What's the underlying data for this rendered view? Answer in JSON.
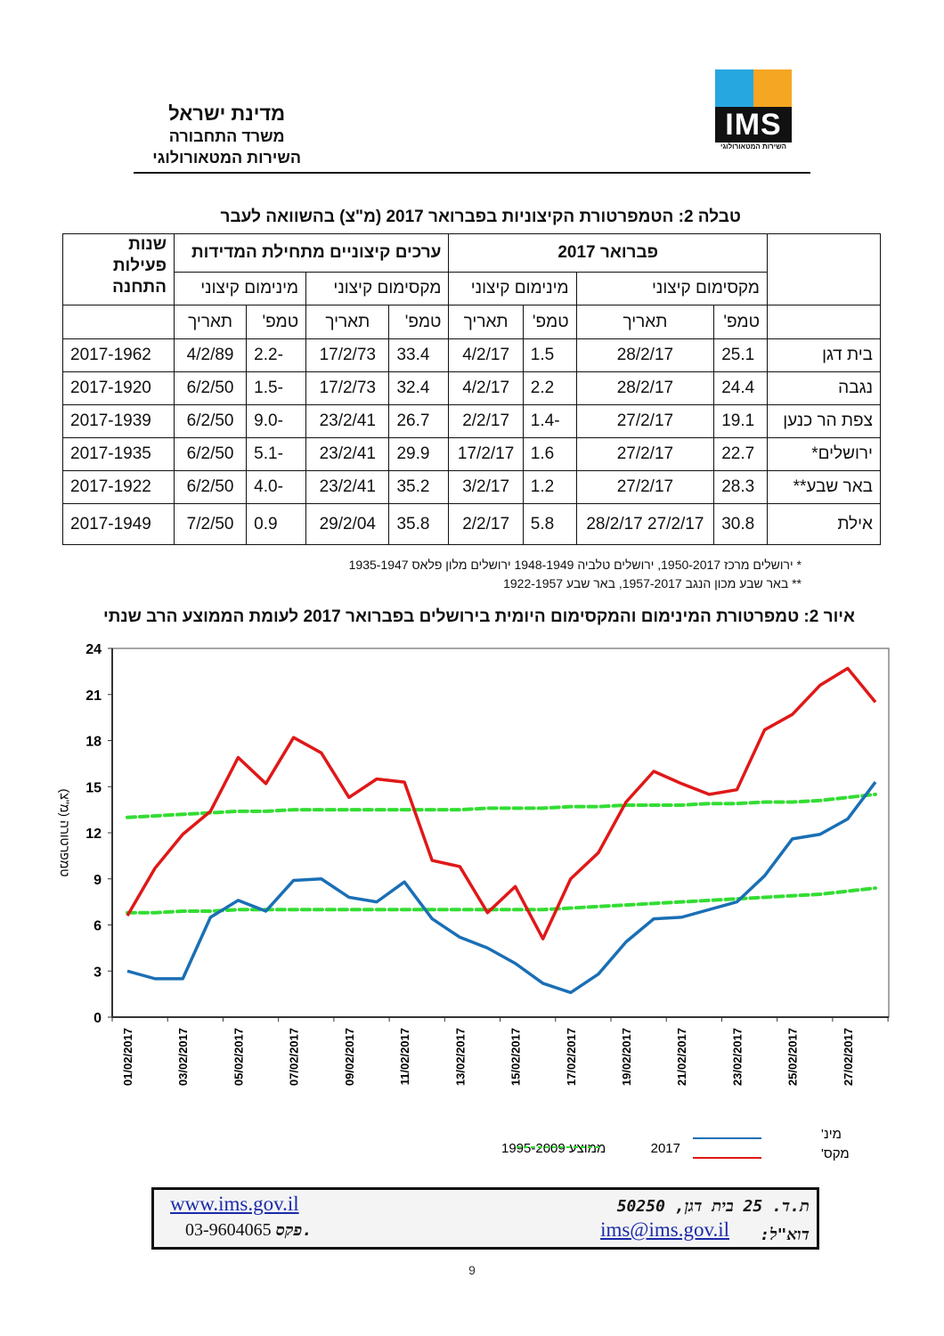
{
  "header": {
    "line1": "מדינת ישראל",
    "line2": "משרד התחבורה",
    "line3": "השירות המטאורולוגי",
    "logo_text": "IMS",
    "logo_subtext": "השירות המטאורולוגי"
  },
  "table": {
    "title": "טבלה 2: הטמפרטורת הקיצוניות בפברואר 2017 (מ\"צ) בהשוואה לעבר",
    "group_feb": "פברואר 2017",
    "group_hist": "ערכים קיצוניים מתחילת המדידות",
    "years_header": "שנות פעילות התחנה",
    "max_label": "מקסימום קיצוני",
    "min_label": "מינימום קיצוני",
    "temp_label": "טמפ'",
    "date_label": "תאריך",
    "rows": [
      {
        "station": "בית דגן",
        "feb_max": "25.1",
        "feb_max_date": "28/2/17",
        "feb_min": "1.5",
        "feb_min_date": "4/2/17",
        "hist_max": "33.4",
        "hist_max_date": "17/2/73",
        "hist_min": "-2.2",
        "hist_min_date": "4/2/89",
        "years": "2017-1962"
      },
      {
        "station": "נגבה",
        "feb_max": "24.4",
        "feb_max_date": "28/2/17",
        "feb_min": "2.2",
        "feb_min_date": "4/2/17",
        "hist_max": "32.4",
        "hist_max_date": "17/2/73",
        "hist_min": "-1.5",
        "hist_min_date": "6/2/50",
        "years": "2017-1920"
      },
      {
        "station": "צפת הר כנען",
        "feb_max": "19.1",
        "feb_max_date": "27/2/17",
        "feb_min": "-1.4",
        "feb_min_date": "2/2/17",
        "hist_max": "26.7",
        "hist_max_date": "23/2/41",
        "hist_min": "-9.0",
        "hist_min_date": "6/2/50",
        "years": "2017-1939"
      },
      {
        "station": "ירושלים*",
        "feb_max": "22.7",
        "feb_max_date": "27/2/17",
        "feb_min": "1.6",
        "feb_min_date": "17/2/17",
        "hist_max": "29.9",
        "hist_max_date": "23/2/41",
        "hist_min": "-5.1",
        "hist_min_date": "6/2/50",
        "years": "2017-1935"
      },
      {
        "station": "באר שבע**",
        "feb_max": "28.3",
        "feb_max_date": "27/2/17",
        "feb_min": "1.2",
        "feb_min_date": "3/2/17",
        "hist_max": "35.2",
        "hist_max_date": "23/2/41",
        "hist_min": "-4.0",
        "hist_min_date": "6/2/50",
        "years": "2017-1922"
      },
      {
        "station": "אילת",
        "feb_max": "30.8",
        "feb_max_date": "27/2/17 28/2/17",
        "feb_min": "5.8",
        "feb_min_date": "2/2/17",
        "hist_max": "35.8",
        "hist_max_date": "29/2/04",
        "hist_min": "0.9",
        "hist_min_date": "7/2/50",
        "years": "2017-1949"
      }
    ]
  },
  "notes": {
    "note1": "* ירושלים מרכז 1950-2017, ירושלים טלביה 1948-1949 ירושלים מלון פלאס 1935-1947",
    "note2": "** באר שבע מכון הנגב 1957-2017, באר שבע 1922-1957"
  },
  "figure_title": "איור 2: טמפרטורת המינימום והמקסימום היומית בירושלים בפברואר 2017 לעומת הממוצע הרב שנתי",
  "chart_data": {
    "type": "line",
    "ylabel": "טמפרטורה (מ\"צ)",
    "ylim": [
      0,
      24
    ],
    "yticks": [
      "0",
      "3",
      "6",
      "9",
      "12",
      "15",
      "18",
      "21",
      "24"
    ],
    "grid": false,
    "x": [
      "01/02/2017",
      "02/02/2017",
      "03/02/2017",
      "04/02/2017",
      "05/02/2017",
      "06/02/2017",
      "07/02/2017",
      "08/02/2017",
      "09/02/2017",
      "10/02/2017",
      "11/02/2017",
      "12/02/2017",
      "13/02/2017",
      "14/02/2017",
      "15/02/2017",
      "16/02/2017",
      "17/02/2017",
      "18/02/2017",
      "19/02/2017",
      "20/02/2017",
      "21/02/2017",
      "22/02/2017",
      "23/02/2017",
      "24/02/2017",
      "25/02/2017",
      "26/02/2017",
      "27/02/2017",
      "28/02/2017"
    ],
    "xtick_labels": [
      "01/02/2017",
      "03/02/2017",
      "05/02/2017",
      "07/02/2017",
      "09/02/2017",
      "11/02/2017",
      "13/02/2017",
      "15/02/2017",
      "17/02/2017",
      "19/02/2017",
      "21/02/2017",
      "23/02/2017",
      "25/02/2017",
      "27/02/2017"
    ],
    "series": [
      {
        "key": "max2017",
        "color": "#e01818",
        "dashed": false,
        "values": [
          6.6,
          9.7,
          11.9,
          13.4,
          16.9,
          15.2,
          18.2,
          17.2,
          14.3,
          15.5,
          15.3,
          10.2,
          9.8,
          6.8,
          8.5,
          5.1,
          9.0,
          10.7,
          14.0,
          16.0,
          15.2,
          14.5,
          14.8,
          18.7,
          19.7,
          21.6,
          22.7,
          20.5
        ]
      },
      {
        "key": "min2017",
        "color": "#1a6fb5",
        "dashed": false,
        "values": [
          3.0,
          2.5,
          2.5,
          6.5,
          7.6,
          6.9,
          8.9,
          9.0,
          7.8,
          7.5,
          8.8,
          6.4,
          5.2,
          4.5,
          3.5,
          2.2,
          1.6,
          2.8,
          4.9,
          6.4,
          6.5,
          7.0,
          7.5,
          9.2,
          11.6,
          11.9,
          12.9,
          15.3
        ]
      },
      {
        "key": "max_avg",
        "color": "#33dd33",
        "dashed": true,
        "values": [
          13.0,
          13.1,
          13.2,
          13.3,
          13.4,
          13.4,
          13.5,
          13.5,
          13.5,
          13.5,
          13.5,
          13.5,
          13.5,
          13.6,
          13.6,
          13.6,
          13.7,
          13.7,
          13.8,
          13.8,
          13.8,
          13.9,
          13.9,
          14.0,
          14.0,
          14.1,
          14.3,
          14.5
        ]
      },
      {
        "key": "min_avg",
        "color": "#33dd33",
        "dashed": true,
        "values": [
          6.8,
          6.8,
          6.9,
          6.9,
          7.0,
          7.0,
          7.0,
          7.0,
          7.0,
          7.0,
          7.0,
          7.0,
          7.0,
          7.0,
          7.0,
          7.0,
          7.1,
          7.2,
          7.3,
          7.4,
          7.5,
          7.6,
          7.7,
          7.8,
          7.9,
          8.0,
          8.2,
          8.4
        ]
      }
    ],
    "legend": {
      "placement": "bottom",
      "min_label": "מינ'",
      "max_label": "מקס'",
      "year_label": "2017",
      "avg_label": "ממוצע 1995-2009"
    }
  },
  "footer": {
    "address": "ת.ד. 25 בית דגן, 50250",
    "email_label": "דוא\"ל:",
    "email": "ims@ims.gov.il",
    "website": "www.ims.gov.il",
    "fax_label": "פקס.",
    "fax": "03-9604065"
  },
  "page_number": "9"
}
